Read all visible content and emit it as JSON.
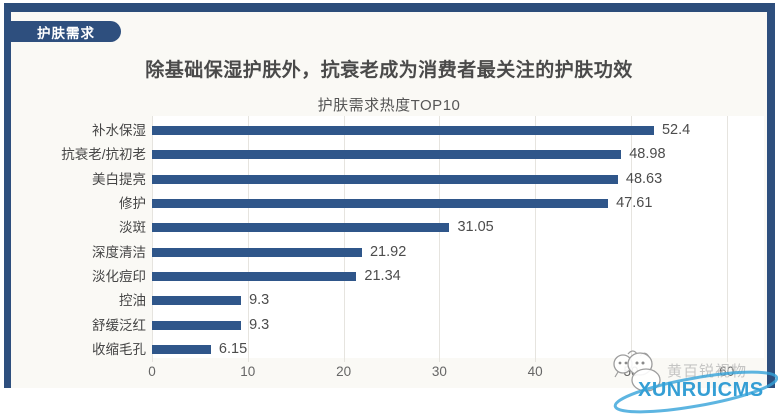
{
  "section_tab": "护肤需求",
  "title": "除基础保湿护肤外，抗衰老成为消费者最关注的护肤功效",
  "chart_data": {
    "type": "bar",
    "orientation": "horizontal",
    "title": "护肤需求热度TOP10",
    "categories": [
      "补水保湿",
      "抗衰老/抗初老",
      "美白提亮",
      "修护",
      "淡斑",
      "深度清洁",
      "淡化痘印",
      "控油",
      "舒缓泛红",
      "收缩毛孔"
    ],
    "values": [
      52.4,
      48.98,
      48.63,
      47.61,
      31.05,
      21.92,
      21.34,
      9.3,
      9.3,
      6.15
    ],
    "xlim": [
      0,
      60
    ],
    "x_ticks": [
      0,
      10,
      20,
      30,
      40,
      50,
      60
    ],
    "grid": true,
    "legend": false,
    "bar_color": "#2f568a",
    "value_labels": true
  },
  "watermark": {
    "gray_text": "黄百锐视物",
    "cms_text": "XUNRUICMS",
    "mascot_icon": "cartoon-mascot-icon",
    "orbit_icon": "ellipse-orbit-icon"
  },
  "colors": {
    "frame": "#2e4f7e",
    "top_bar": "#2c4d7a",
    "bar": "#2f568a",
    "watermark_blue": "#2b9ad3",
    "background": "#faf9f5"
  }
}
